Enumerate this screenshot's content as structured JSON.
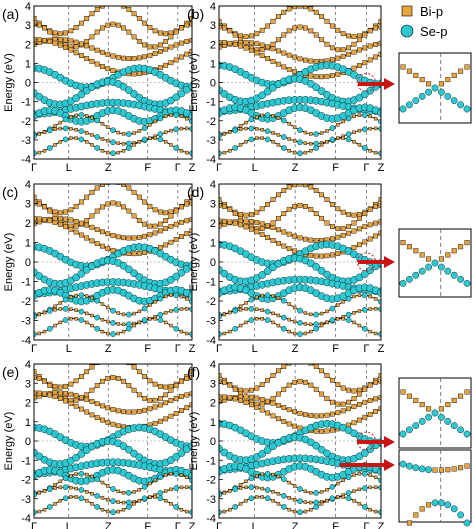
{
  "chart_data": {
    "type": "scatter",
    "description_units": "Energy in eV along high-symmetry k-path",
    "legend": [
      {
        "name": "Bi-p",
        "marker": "square",
        "color": "#E8A33C"
      },
      {
        "name": "Se-p",
        "marker": "circle",
        "color": "#2CC9D3"
      }
    ],
    "ylabel": "Energy (eV)",
    "ylim": [
      -4,
      4
    ],
    "yticks": [
      "-4",
      "-3",
      "-2",
      "-1",
      "0",
      "1",
      "2",
      "3",
      "4"
    ],
    "kpath": [
      "Γ",
      "L",
      "Z",
      "F",
      "Γ",
      "Z"
    ],
    "panels": [
      {
        "label": "(a)",
        "gap_ev": 0.3
      },
      {
        "label": "(b)",
        "gap_ev": 0.0,
        "inset": true
      },
      {
        "label": "(c)",
        "gap_ev": 0.25
      },
      {
        "label": "(d)",
        "gap_ev": 0.0,
        "inset": true
      },
      {
        "label": "(e)",
        "gap_ev": 0.4
      },
      {
        "label": "(f)",
        "gap_ev": 0.0,
        "inset": true,
        "second_inset": true
      }
    ]
  },
  "colors": {
    "bi": "#E8A33C",
    "se": "#2CC9D3",
    "arrow": "#C81414",
    "line": "#000000",
    "vline": "#555555"
  }
}
